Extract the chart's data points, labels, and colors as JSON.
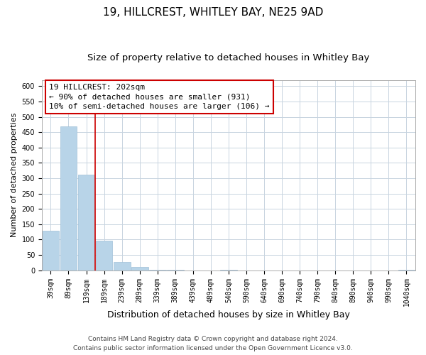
{
  "title": "19, HILLCREST, WHITLEY BAY, NE25 9AD",
  "subtitle": "Size of property relative to detached houses in Whitley Bay",
  "xlabel": "Distribution of detached houses by size in Whitley Bay",
  "ylabel": "Number of detached properties",
  "bar_labels": [
    "39sqm",
    "89sqm",
    "139sqm",
    "189sqm",
    "239sqm",
    "289sqm",
    "339sqm",
    "389sqm",
    "439sqm",
    "489sqm",
    "540sqm",
    "590sqm",
    "640sqm",
    "690sqm",
    "740sqm",
    "790sqm",
    "840sqm",
    "890sqm",
    "940sqm",
    "990sqm",
    "1040sqm"
  ],
  "bar_values": [
    128,
    470,
    311,
    97,
    26,
    10,
    2,
    1,
    0,
    0,
    1,
    0,
    0,
    0,
    0,
    0,
    0,
    0,
    0,
    0,
    2
  ],
  "bar_color": "#b8d4e8",
  "bar_edgecolor": "#a0c0d8",
  "vline_color": "#cc0000",
  "vline_x": 2.5,
  "annotation_text": "19 HILLCREST: 202sqm\n← 90% of detached houses are smaller (931)\n10% of semi-detached houses are larger (106) →",
  "annotation_box_color": "#cc0000",
  "ylim": [
    0,
    620
  ],
  "yticks": [
    0,
    50,
    100,
    150,
    200,
    250,
    300,
    350,
    400,
    450,
    500,
    550,
    600
  ],
  "footer_line1": "Contains HM Land Registry data © Crown copyright and database right 2024.",
  "footer_line2": "Contains public sector information licensed under the Open Government Licence v3.0.",
  "title_fontsize": 11,
  "subtitle_fontsize": 9.5,
  "xlabel_fontsize": 9,
  "ylabel_fontsize": 8,
  "tick_fontsize": 7,
  "annotation_fontsize": 8,
  "footer_fontsize": 6.5,
  "grid_color": "#c8d4e0"
}
